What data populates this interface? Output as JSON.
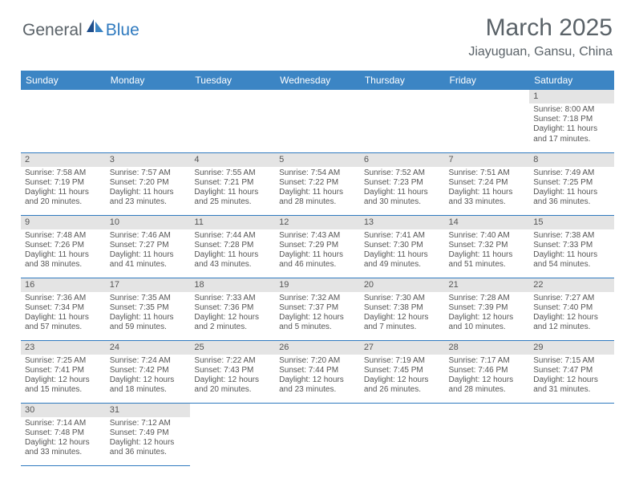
{
  "logo": {
    "part1": "General",
    "part2": "Blue"
  },
  "title": "March 2025",
  "location": "Jiayuguan, Gansu, China",
  "colors": {
    "header_bg": "#3c85c4",
    "border": "#2f7abf",
    "daynum_bg": "#e4e4e4",
    "text": "#555555",
    "logo_gray": "#5a6268",
    "logo_blue": "#2f7abf"
  },
  "dayHeaders": [
    "Sunday",
    "Monday",
    "Tuesday",
    "Wednesday",
    "Thursday",
    "Friday",
    "Saturday"
  ],
  "weeks": [
    [
      null,
      null,
      null,
      null,
      null,
      null,
      {
        "n": "1",
        "sr": "Sunrise: 8:00 AM",
        "ss": "Sunset: 7:18 PM",
        "dl": "Daylight: 11 hours and 17 minutes."
      }
    ],
    [
      {
        "n": "2",
        "sr": "Sunrise: 7:58 AM",
        "ss": "Sunset: 7:19 PM",
        "dl": "Daylight: 11 hours and 20 minutes."
      },
      {
        "n": "3",
        "sr": "Sunrise: 7:57 AM",
        "ss": "Sunset: 7:20 PM",
        "dl": "Daylight: 11 hours and 23 minutes."
      },
      {
        "n": "4",
        "sr": "Sunrise: 7:55 AM",
        "ss": "Sunset: 7:21 PM",
        "dl": "Daylight: 11 hours and 25 minutes."
      },
      {
        "n": "5",
        "sr": "Sunrise: 7:54 AM",
        "ss": "Sunset: 7:22 PM",
        "dl": "Daylight: 11 hours and 28 minutes."
      },
      {
        "n": "6",
        "sr": "Sunrise: 7:52 AM",
        "ss": "Sunset: 7:23 PM",
        "dl": "Daylight: 11 hours and 30 minutes."
      },
      {
        "n": "7",
        "sr": "Sunrise: 7:51 AM",
        "ss": "Sunset: 7:24 PM",
        "dl": "Daylight: 11 hours and 33 minutes."
      },
      {
        "n": "8",
        "sr": "Sunrise: 7:49 AM",
        "ss": "Sunset: 7:25 PM",
        "dl": "Daylight: 11 hours and 36 minutes."
      }
    ],
    [
      {
        "n": "9",
        "sr": "Sunrise: 7:48 AM",
        "ss": "Sunset: 7:26 PM",
        "dl": "Daylight: 11 hours and 38 minutes."
      },
      {
        "n": "10",
        "sr": "Sunrise: 7:46 AM",
        "ss": "Sunset: 7:27 PM",
        "dl": "Daylight: 11 hours and 41 minutes."
      },
      {
        "n": "11",
        "sr": "Sunrise: 7:44 AM",
        "ss": "Sunset: 7:28 PM",
        "dl": "Daylight: 11 hours and 43 minutes."
      },
      {
        "n": "12",
        "sr": "Sunrise: 7:43 AM",
        "ss": "Sunset: 7:29 PM",
        "dl": "Daylight: 11 hours and 46 minutes."
      },
      {
        "n": "13",
        "sr": "Sunrise: 7:41 AM",
        "ss": "Sunset: 7:30 PM",
        "dl": "Daylight: 11 hours and 49 minutes."
      },
      {
        "n": "14",
        "sr": "Sunrise: 7:40 AM",
        "ss": "Sunset: 7:32 PM",
        "dl": "Daylight: 11 hours and 51 minutes."
      },
      {
        "n": "15",
        "sr": "Sunrise: 7:38 AM",
        "ss": "Sunset: 7:33 PM",
        "dl": "Daylight: 11 hours and 54 minutes."
      }
    ],
    [
      {
        "n": "16",
        "sr": "Sunrise: 7:36 AM",
        "ss": "Sunset: 7:34 PM",
        "dl": "Daylight: 11 hours and 57 minutes."
      },
      {
        "n": "17",
        "sr": "Sunrise: 7:35 AM",
        "ss": "Sunset: 7:35 PM",
        "dl": "Daylight: 11 hours and 59 minutes."
      },
      {
        "n": "18",
        "sr": "Sunrise: 7:33 AM",
        "ss": "Sunset: 7:36 PM",
        "dl": "Daylight: 12 hours and 2 minutes."
      },
      {
        "n": "19",
        "sr": "Sunrise: 7:32 AM",
        "ss": "Sunset: 7:37 PM",
        "dl": "Daylight: 12 hours and 5 minutes."
      },
      {
        "n": "20",
        "sr": "Sunrise: 7:30 AM",
        "ss": "Sunset: 7:38 PM",
        "dl": "Daylight: 12 hours and 7 minutes."
      },
      {
        "n": "21",
        "sr": "Sunrise: 7:28 AM",
        "ss": "Sunset: 7:39 PM",
        "dl": "Daylight: 12 hours and 10 minutes."
      },
      {
        "n": "22",
        "sr": "Sunrise: 7:27 AM",
        "ss": "Sunset: 7:40 PM",
        "dl": "Daylight: 12 hours and 12 minutes."
      }
    ],
    [
      {
        "n": "23",
        "sr": "Sunrise: 7:25 AM",
        "ss": "Sunset: 7:41 PM",
        "dl": "Daylight: 12 hours and 15 minutes."
      },
      {
        "n": "24",
        "sr": "Sunrise: 7:24 AM",
        "ss": "Sunset: 7:42 PM",
        "dl": "Daylight: 12 hours and 18 minutes."
      },
      {
        "n": "25",
        "sr": "Sunrise: 7:22 AM",
        "ss": "Sunset: 7:43 PM",
        "dl": "Daylight: 12 hours and 20 minutes."
      },
      {
        "n": "26",
        "sr": "Sunrise: 7:20 AM",
        "ss": "Sunset: 7:44 PM",
        "dl": "Daylight: 12 hours and 23 minutes."
      },
      {
        "n": "27",
        "sr": "Sunrise: 7:19 AM",
        "ss": "Sunset: 7:45 PM",
        "dl": "Daylight: 12 hours and 26 minutes."
      },
      {
        "n": "28",
        "sr": "Sunrise: 7:17 AM",
        "ss": "Sunset: 7:46 PM",
        "dl": "Daylight: 12 hours and 28 minutes."
      },
      {
        "n": "29",
        "sr": "Sunrise: 7:15 AM",
        "ss": "Sunset: 7:47 PM",
        "dl": "Daylight: 12 hours and 31 minutes."
      }
    ],
    [
      {
        "n": "30",
        "sr": "Sunrise: 7:14 AM",
        "ss": "Sunset: 7:48 PM",
        "dl": "Daylight: 12 hours and 33 minutes."
      },
      {
        "n": "31",
        "sr": "Sunrise: 7:12 AM",
        "ss": "Sunset: 7:49 PM",
        "dl": "Daylight: 12 hours and 36 minutes."
      },
      null,
      null,
      null,
      null,
      null
    ]
  ]
}
